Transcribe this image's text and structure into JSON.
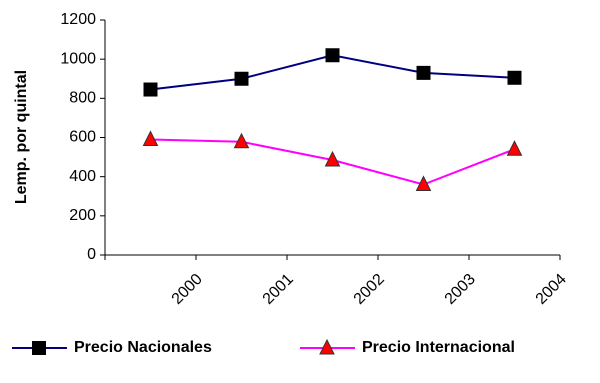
{
  "chart_data": {
    "type": "line",
    "categories": [
      "2000",
      "2001",
      "2002",
      "2003",
      "2004"
    ],
    "ylabel": "Lemp. por quintal",
    "xlabel": "",
    "ylim": [
      0,
      1200
    ],
    "yticks": [
      0,
      200,
      400,
      600,
      800,
      1000,
      1200
    ],
    "grid": false,
    "legend_position": "bottom",
    "series": [
      {
        "name": "Precio Nacionales",
        "values": [
          845,
          900,
          1020,
          930,
          905
        ],
        "color": "#000080",
        "marker": "square",
        "marker_color": "#000000"
      },
      {
        "name": "Precio Internacional",
        "values": [
          590,
          578,
          485,
          360,
          540
        ],
        "color": "#ff00ff",
        "marker": "triangle",
        "marker_color": "#ff0000"
      }
    ]
  }
}
